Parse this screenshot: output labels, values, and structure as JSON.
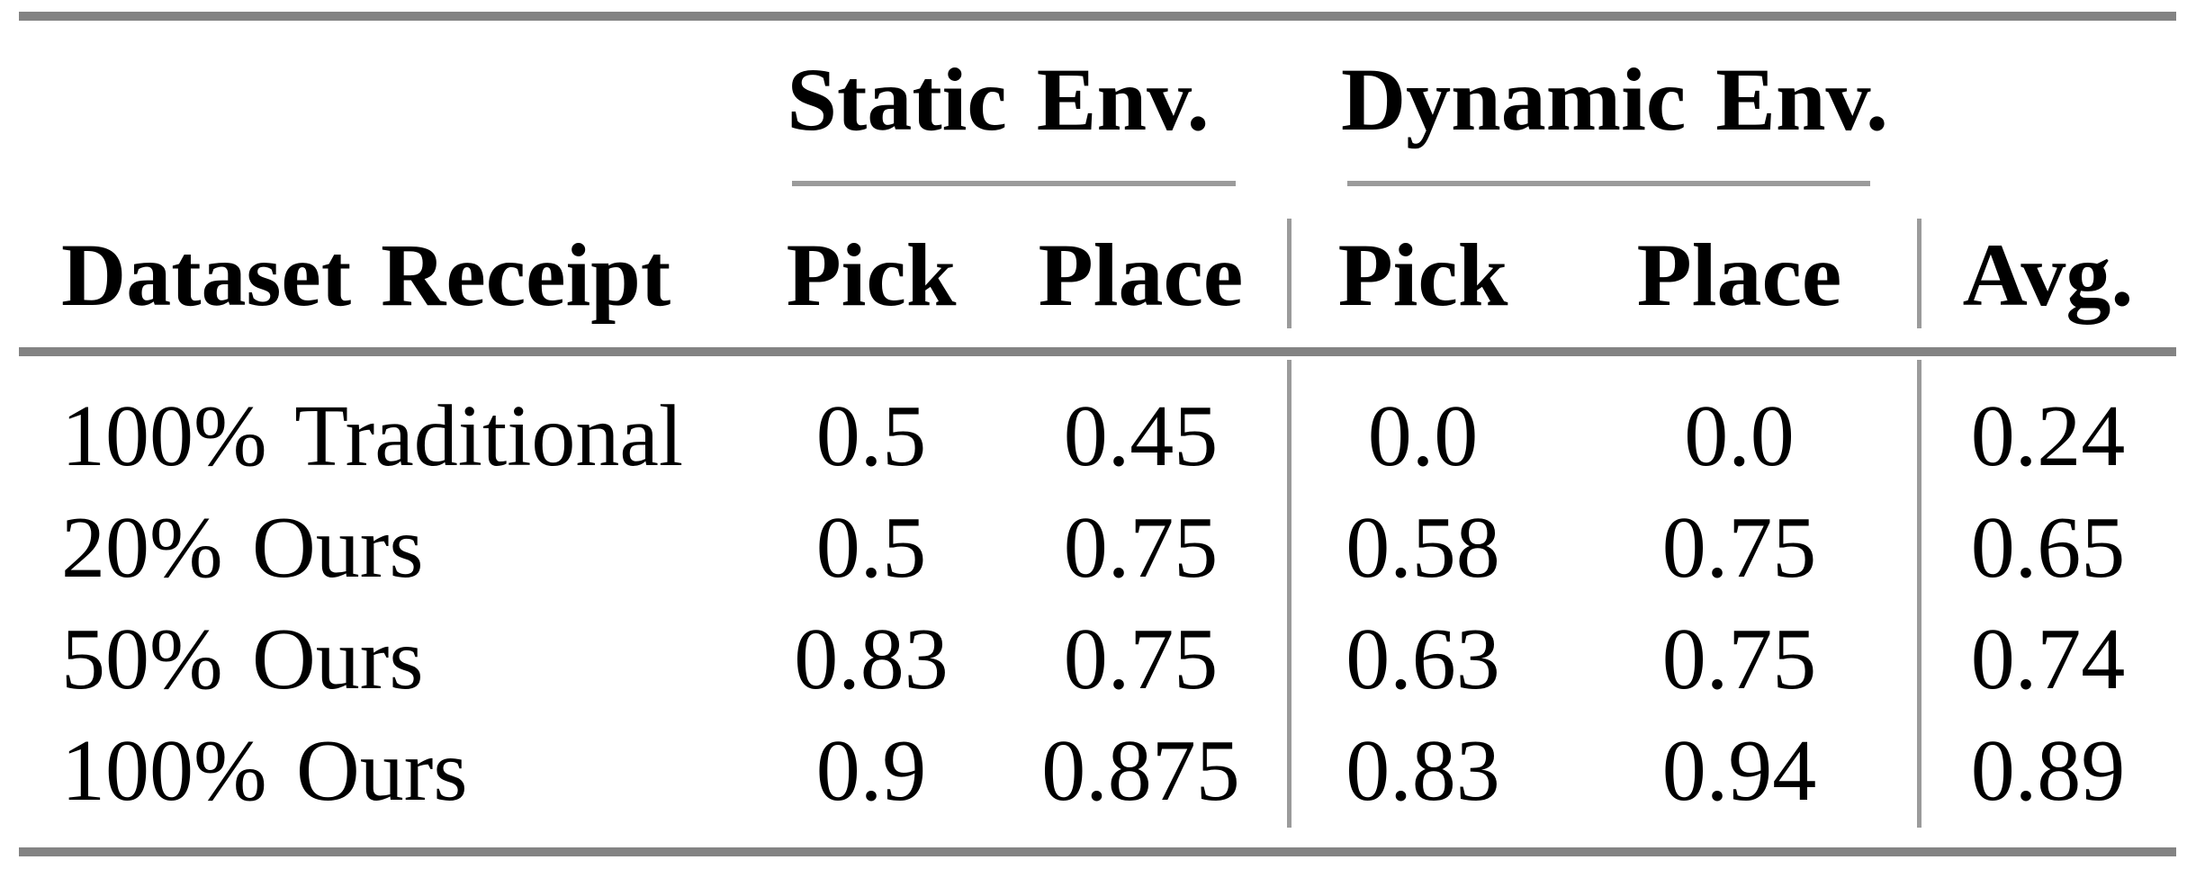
{
  "table": {
    "groups": [
      {
        "label": "Static Env."
      },
      {
        "label": "Dynamic Env."
      }
    ],
    "columns": {
      "dataset": "Dataset Receipt",
      "static_pick": "Pick",
      "static_place": "Place",
      "dynamic_pick": "Pick",
      "dynamic_place": "Place",
      "avg": "Avg."
    },
    "rows": [
      {
        "label": "100% Traditional",
        "static_pick": "0.5",
        "static_place": "0.45",
        "dynamic_pick": "0.0",
        "dynamic_place": "0.0",
        "avg": "0.24"
      },
      {
        "label": "20% Ours",
        "static_pick": "0.5",
        "static_place": "0.75",
        "dynamic_pick": "0.58",
        "dynamic_place": "0.75",
        "avg": "0.65"
      },
      {
        "label": "50% Ours",
        "static_pick": "0.83",
        "static_place": "0.75",
        "dynamic_pick": "0.63",
        "dynamic_place": "0.75",
        "avg": "0.74"
      },
      {
        "label": "100% Ours",
        "static_pick": "0.9",
        "static_place": "0.875",
        "dynamic_pick": "0.83",
        "dynamic_place": "0.94",
        "avg": "0.89"
      }
    ]
  },
  "colors": {
    "background": "#ffffff",
    "text": "#000000",
    "rule_heavy": "#838383",
    "rule_light": "#9b9b9b"
  }
}
